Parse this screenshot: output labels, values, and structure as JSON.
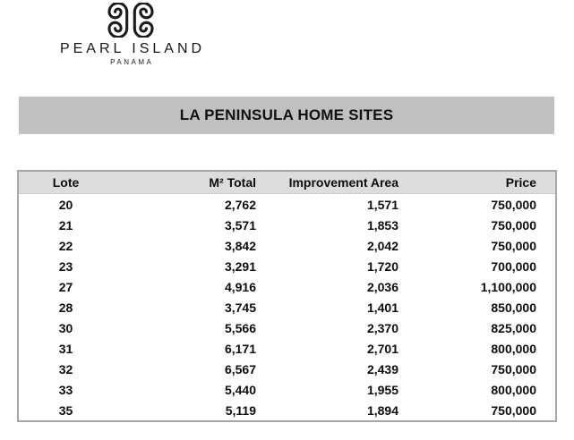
{
  "logo": {
    "icon": "double-scroll-icon",
    "title": "PEARL ISLAND",
    "subtitle": "PANAMA",
    "color": "#161616"
  },
  "banner": {
    "title": "LA PENINSULA HOME SITES",
    "bg": "#c0c0c0"
  },
  "table": {
    "header_bg": "#dcdcdc",
    "border_color": "#a6a6a6",
    "headers": [
      "Lote",
      "M² Total",
      "Improvement Area",
      "Price"
    ],
    "rows": [
      [
        "20",
        "2,762",
        "1,571",
        "750,000"
      ],
      [
        "21",
        "3,571",
        "1,853",
        "750,000"
      ],
      [
        "22",
        "3,842",
        "2,042",
        "750,000"
      ],
      [
        "23",
        "3,291",
        "1,720",
        "700,000"
      ],
      [
        "27",
        "4,916",
        "2,036",
        "1,100,000"
      ],
      [
        "28",
        "3,745",
        "1,401",
        "850,000"
      ],
      [
        "30",
        "5,566",
        "2,370",
        "825,000"
      ],
      [
        "31",
        "6,171",
        "2,701",
        "800,000"
      ],
      [
        "32",
        "6,567",
        "2,439",
        "750,000"
      ],
      [
        "33",
        "5,440",
        "1,955",
        "800,000"
      ],
      [
        "35",
        "5,119",
        "1,894",
        "750,000"
      ]
    ]
  }
}
